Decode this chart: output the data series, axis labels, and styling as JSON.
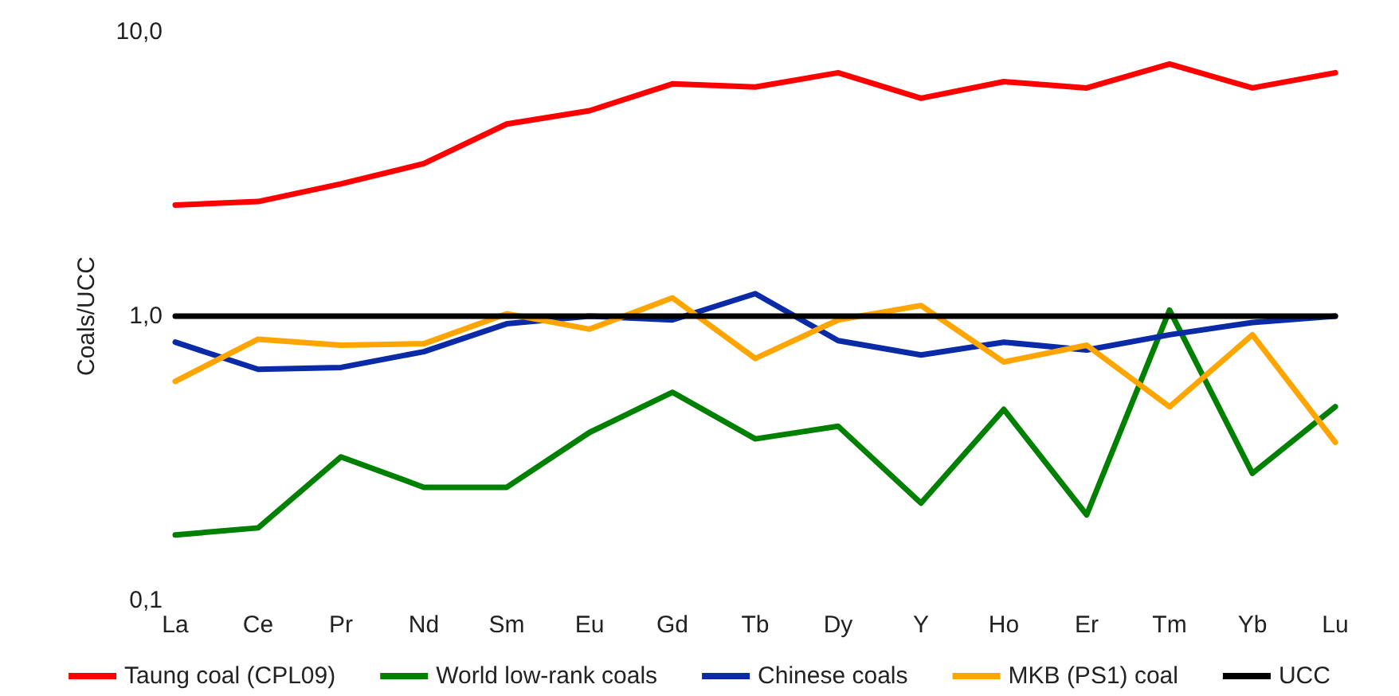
{
  "chart_data": {
    "type": "line",
    "ylabel": "Coals/UCC",
    "log": "y",
    "grid": false,
    "legend": "bottom",
    "marker": "none",
    "line_style": "solid",
    "categories": [
      "La",
      "Ce",
      "Pr",
      "Nd",
      "Sm",
      "Eu",
      "Gd",
      "Tb",
      "Dy",
      "Y",
      "Ho",
      "Er",
      "Tm",
      "Yb",
      "Lu"
    ],
    "ylim": [
      0.1,
      10
    ],
    "yticks": [
      {
        "value": 0.1,
        "label": "0,1"
      },
      {
        "value": 1,
        "label": "1,0"
      },
      {
        "value": 10,
        "label": "10,0"
      }
    ],
    "series": [
      {
        "name": "Taung coal (CPL09)",
        "color": "#ff0000",
        "values": [
          2.46,
          2.53,
          2.92,
          3.44,
          4.74,
          5.28,
          6.56,
          6.4,
          7.18,
          5.84,
          6.68,
          6.35,
          7.71,
          6.35,
          7.18
        ]
      },
      {
        "name": "World low-rank coals",
        "color": "#008000",
        "values": [
          0.17,
          0.18,
          0.32,
          0.25,
          0.25,
          0.39,
          0.54,
          0.37,
          0.41,
          0.22,
          0.47,
          0.2,
          1.05,
          0.28,
          0.48
        ]
      },
      {
        "name": "Chinese coals",
        "color": "#0a2aa8",
        "values": [
          0.81,
          0.65,
          0.66,
          0.75,
          0.94,
          1.0,
          0.97,
          1.2,
          0.82,
          0.73,
          0.81,
          0.76,
          0.86,
          0.95,
          1.0
        ]
      },
      {
        "name": "MKB (PS1) coal",
        "color": "#ffa500",
        "values": [
          0.59,
          0.83,
          0.79,
          0.8,
          1.02,
          0.9,
          1.16,
          0.71,
          0.97,
          1.09,
          0.69,
          0.79,
          0.48,
          0.86,
          0.36
        ]
      },
      {
        "name": "UCC",
        "color": "#000000",
        "values": [
          1,
          1,
          1,
          1,
          1,
          1,
          1,
          1,
          1,
          1,
          1,
          1,
          1,
          1,
          1
        ]
      }
    ]
  }
}
